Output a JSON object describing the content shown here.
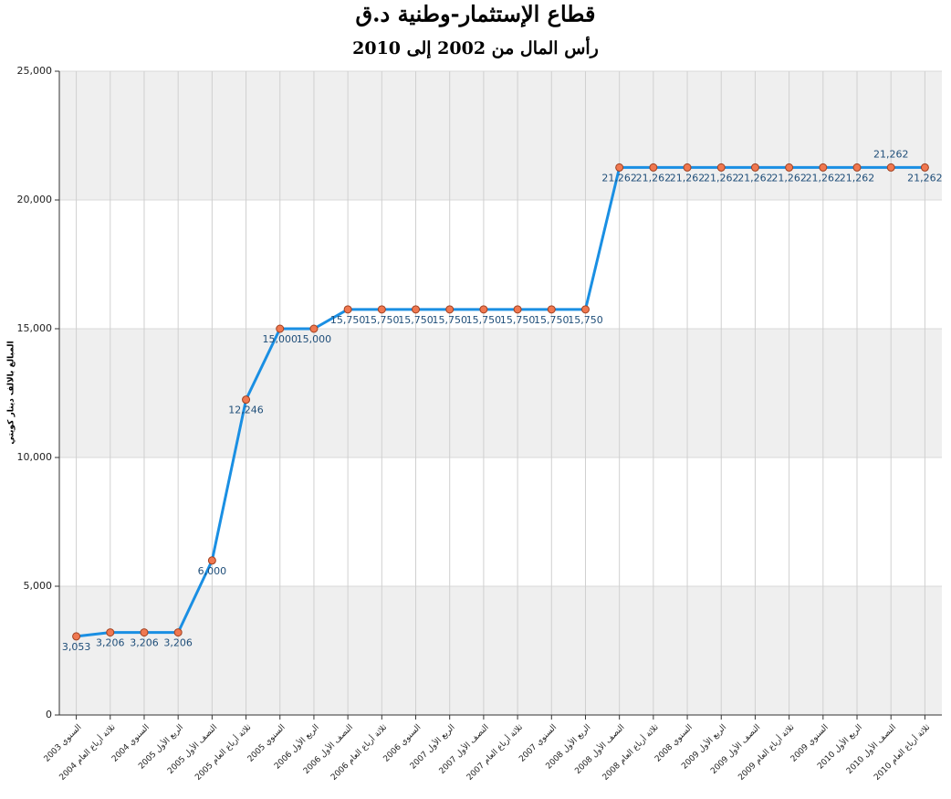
{
  "chart_data": {
    "type": "line",
    "title": "قطاع الإستثمار-وطنية د.ق",
    "subtitle": "رأس المال من 2002 إلى 2010",
    "y_label": "المبالغ بالالف دينار كويتي",
    "categories": [
      "السنوي 2003",
      "ثلاثة أرباع العام 2004",
      "السنوي 2004",
      "الربع الأول 2005",
      "النصف الأول 2005",
      "ثلاثة أرباع العام 2005",
      "السنوي 2005",
      "الربع الأول 2006",
      "النصف الأول 2006",
      "ثلاثة أرباع العام 2006",
      "السنوي 2006",
      "الربع الأول 2007",
      "النصف الأول 2007",
      "ثلاثة أرباع العام 2007",
      "السنوي 2007",
      "الربع الأول 2008",
      "النصف الأول 2008",
      "ثلاثة أرباع العام 2008",
      "السنوي 2008",
      "الربع الأول 2009",
      "النصف الأول 2009",
      "ثلاثة أرباع العام 2009",
      "السنوي 2009",
      "الربع الأول 2010",
      "النصف الأول 2010",
      "ثلاثة أرباع العام 2010"
    ],
    "values": [
      3053,
      3206,
      3206,
      3206,
      6000,
      12246,
      15000,
      15000,
      15750,
      15750,
      15750,
      15750,
      15750,
      15750,
      15750,
      15750,
      21262,
      21262,
      21262,
      21262,
      21262,
      21262,
      21262,
      21262,
      21262,
      21262
    ],
    "value_labels": [
      "3,053",
      "3,206",
      "3,206",
      "3,206",
      "6,000",
      "12,246",
      "15,000",
      "15,000",
      "15,750",
      "15,750",
      "15,750",
      "15,750",
      "15,750",
      "15,750",
      "15,750",
      "15,750",
      "21,262",
      "21,262",
      "21,262",
      "21,262",
      "21,262",
      "21,262",
      "21,262",
      "21,262",
      "21,262",
      "21,262"
    ],
    "color": "#1a8fe3",
    "marker_color": "#f07850",
    "ylim": [
      0,
      25000
    ],
    "yticks": [
      0,
      {
        "value": 5000,
        "label": "5,000"
      },
      {
        "value": 10000,
        "label": "10,000"
      },
      {
        "value": 15000,
        "label": "15,000"
      },
      {
        "value": 20000,
        "label": "20,000"
      },
      {
        "value": 25000,
        "label": "25,000"
      }
    ],
    "grid": true
  }
}
